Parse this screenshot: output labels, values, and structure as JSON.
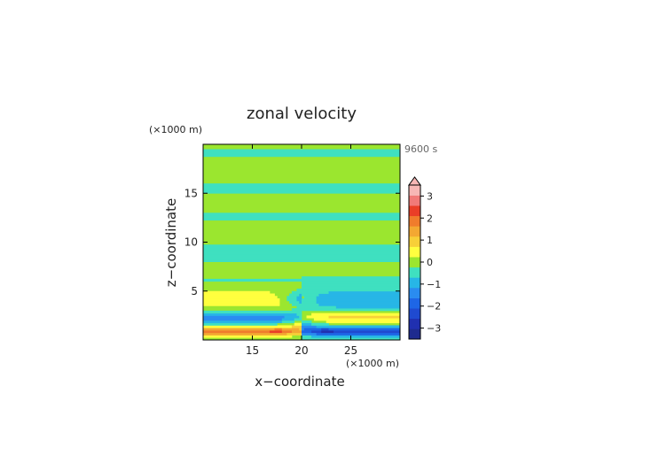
{
  "chart_data": {
    "type": "heatmap",
    "title": "zonal velocity",
    "xlabel": "x−coordinate",
    "ylabel": "z−coordinate",
    "x_unit": "(×1000 m)",
    "y_unit": "(×1000 m)",
    "time_label": "9600 s",
    "xlim": [
      10,
      30
    ],
    "ylim": [
      0,
      20
    ],
    "x_ticks": [
      {
        "value": 15,
        "label": "15"
      },
      {
        "value": 20,
        "label": "20"
      },
      {
        "value": 25,
        "label": "25"
      }
    ],
    "y_ticks": [
      {
        "value": 5,
        "label": "5"
      },
      {
        "value": 10,
        "label": "10"
      },
      {
        "value": 15,
        "label": "15"
      }
    ],
    "colorbar": {
      "levels": [
        -3.5,
        -3,
        -2.5,
        -2,
        -1.5,
        -1,
        -0.5,
        0,
        0.5,
        1,
        1.5,
        2,
        2.5,
        3,
        3.5
      ],
      "colors": [
        "#1e2b8f",
        "#2030b0",
        "#1f4ad0",
        "#1e66e6",
        "#2a8cf0",
        "#27b6e6",
        "#3fe0c0",
        "#9be62f",
        "#ffff3f",
        "#f7d038",
        "#f3a832",
        "#f07c2c",
        "#ea3e27",
        "#f17a78",
        "#f7b7b5"
      ],
      "ticks": [
        {
          "value": 3,
          "label": "3"
        },
        {
          "value": 2,
          "label": "2"
        },
        {
          "value": 1,
          "label": "1"
        },
        {
          "value": 0,
          "label": "0"
        },
        {
          "value": -1,
          "label": "−1"
        },
        {
          "value": -2,
          "label": "−2"
        },
        {
          "value": -3,
          "label": "−3"
        }
      ],
      "extend_max": true
    },
    "field": {
      "x_range": [
        10,
        30
      ],
      "z_range": [
        0,
        20
      ],
      "nx": 80,
      "nz": 80,
      "background": "#9be62f"
    }
  }
}
